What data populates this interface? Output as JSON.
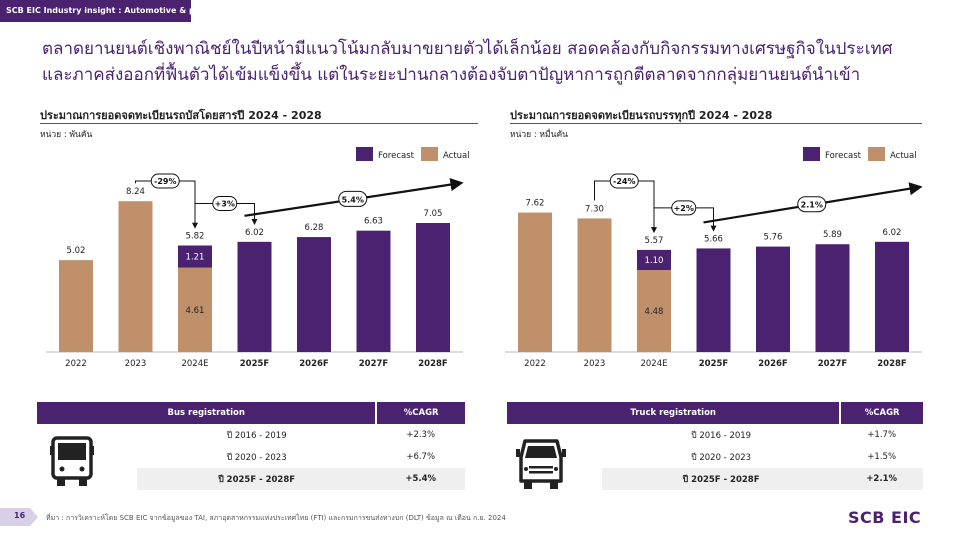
{
  "header": {
    "tag": "SCB EIC Industry insight : Automotive & parts"
  },
  "headline": {
    "line1": "ตลาดยานยนต์เชิงพาณิชย์ในปีหน้ามีแนวโน้มกลับมาขยายตัวได้เล็กน้อย สอดคล้องกับกิจกรรมทางเศรษฐกิจในประเทศ",
    "line2": "และภาคส่งออกที่ฟื้นตัวได้เข้มแข็งขึ้น แต่ในระยะปานกลางต้องจับตาปัญหาการถูกตีตลาดจากกลุ่มยานยนต์นำเข้า"
  },
  "colors": {
    "forecast": "#4a2270",
    "actual": "#c0906a",
    "header": "#4a2270"
  },
  "chart_data": [
    {
      "type": "bar",
      "title": "ประมาณการยอดจดทะเบียนรถบัสโดยสารปี 2024 - 2028",
      "unit": "หน่วย : พันคัน",
      "legend": [
        "Forecast",
        "Actual"
      ],
      "legend_position": "top-right",
      "categories": [
        "2022",
        "2023",
        "2024E",
        "2025F",
        "2026F",
        "2027F",
        "2028F"
      ],
      "totals": [
        5.02,
        8.24,
        5.82,
        6.02,
        6.28,
        6.63,
        7.05
      ],
      "total_labels": [
        "5.02",
        "8.24",
        "5.82",
        "6.02",
        "6.28",
        "6.63",
        "7.05"
      ],
      "series": [
        {
          "name": "Actual",
          "values": [
            5.02,
            8.24,
            4.61,
            0,
            0,
            0,
            0
          ]
        },
        {
          "name": "Forecast",
          "values": [
            0,
            0,
            1.21,
            6.02,
            6.28,
            6.63,
            7.05
          ]
        }
      ],
      "segment_labels": {
        "actual_2024E": "4.61",
        "forecast_2024E": "1.21"
      },
      "annotations": {
        "drop": "-29%",
        "step": "+3%",
        "cagr": "5.4%"
      },
      "ylim": [
        0,
        9.5
      ]
    },
    {
      "type": "bar",
      "title": "ประมาณการยอดจดทะเบียนรถบรรทุกปี 2024 - 2028",
      "unit": "หน่วย : หมื่นคัน",
      "legend": [
        "Forecast",
        "Actual"
      ],
      "legend_position": "top-right",
      "categories": [
        "2022",
        "2023",
        "2024E",
        "2025F",
        "2026F",
        "2027F",
        "2028F"
      ],
      "totals": [
        7.62,
        7.3,
        5.57,
        5.66,
        5.76,
        5.89,
        6.02
      ],
      "total_labels": [
        "7.62",
        "7.30",
        "5.57",
        "5.66",
        "5.76",
        "5.89",
        "6.02"
      ],
      "series": [
        {
          "name": "Actual",
          "values": [
            7.62,
            7.3,
            4.48,
            0,
            0,
            0,
            0
          ]
        },
        {
          "name": "Forecast",
          "values": [
            0,
            0,
            1.1,
            5.66,
            5.76,
            5.89,
            6.02
          ]
        }
      ],
      "segment_labels": {
        "actual_2024E": "4.48",
        "forecast_2024E": "1.10"
      },
      "annotations": {
        "drop": "-24%",
        "step": "+2%",
        "cagr": "2.1%"
      },
      "ylim": [
        0,
        9.5
      ]
    }
  ],
  "bus_table": {
    "headers": [
      "Bus registration",
      "%CAGR"
    ],
    "rows": [
      {
        "period": "ปี 2016 - 2019",
        "value": "+2.3%"
      },
      {
        "period": "ปี 2020 - 2023",
        "value": "+6.7%"
      },
      {
        "period": "ปี 2025F - 2028F",
        "value": "+5.4%"
      }
    ],
    "icon": "bus-icon"
  },
  "truck_table": {
    "headers": [
      "Truck registration",
      "%CAGR"
    ],
    "rows": [
      {
        "period": "ปี 2016 - 2019",
        "value": "+1.7%"
      },
      {
        "period": "ปี 2020 - 2023",
        "value": "+1.5%"
      },
      {
        "period": "ปี 2025F - 2028F",
        "value": "+2.1%"
      }
    ],
    "icon": "truck-icon"
  },
  "footer": {
    "page_number": "16",
    "source": "ที่มา : การวิเคราะห์โดย SCB EIC จากข้อมูลของ TAI, สภาอุตสาหกรรมแห่งประเทศไทย (FTI) และกรมการขนส่งทางบก (DLT) ข้อมูล ณ เดือน ก.ย. 2024",
    "logo": "SCB EIC"
  }
}
